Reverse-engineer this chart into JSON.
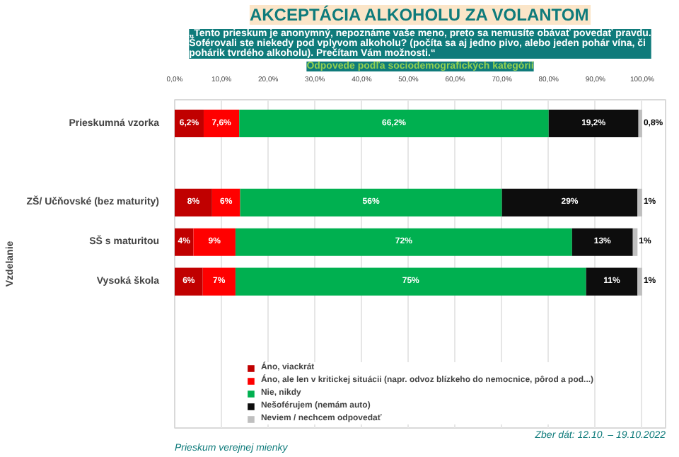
{
  "chart_data": {
    "type": "bar",
    "orientation": "horizontal",
    "stacked": true,
    "title": "AKCEPTÁCIA ALKOHOLU ZA VOLANTOM",
    "subtitle": "„Tento prieskum je anonymný, nepoznáme vaše meno, preto sa nemusíte obávať povedať pravdu. Šoférovali ste niekedy pod vplyvom alkoholu? (počíta sa aj jedno pivo, alebo jeden pohár vína, či pohárik tvrdého alkoholu). Prečítam Vám možnosti.“",
    "annotations": [
      "Odpovede podľa sociodemografických kategórií",
      "Prieskum verejnej mienky",
      "Zber dát: 12.10. – 19.10.2022"
    ],
    "ylabel": "Vzdelanie",
    "categories": [
      "Prieskumná vzorka",
      null,
      "ZŠ/ Učňovské (bez maturity)",
      "SŠ s maturitou",
      "Vysoká škola"
    ],
    "series": [
      {
        "name": "Áno, viackrát",
        "color": "#c00000",
        "values": [
          6.2,
          null,
          8,
          4,
          6
        ],
        "value_labels": [
          "6,2%",
          null,
          "8%",
          "4%",
          "6%"
        ]
      },
      {
        "name": "Áno, ale len v kritickej situácii (napr. odvoz blízkeho do nemocnice, pôrod a pod...)",
        "color": "#ff0000",
        "values": [
          7.6,
          null,
          6,
          9,
          7
        ],
        "value_labels": [
          "7,6%",
          null,
          "6%",
          "9%",
          "7%"
        ]
      },
      {
        "name": "Nie, nikdy",
        "color": "#00b050",
        "values": [
          66.2,
          null,
          56,
          72,
          75
        ],
        "value_labels": [
          "66,2%",
          null,
          "56%",
          "72%",
          "75%"
        ]
      },
      {
        "name": "Nešoférujem (nemám auto)",
        "color": "#0d0d0d",
        "values": [
          19.2,
          null,
          29,
          13,
          11
        ],
        "value_labels": [
          "19,2%",
          null,
          "29%",
          "13%",
          "11%"
        ]
      },
      {
        "name": "Neviem / nechcem odpovedať",
        "color": "#bfbfbf",
        "values": [
          0.8,
          null,
          1,
          1,
          1
        ],
        "value_labels": [
          "0,8%",
          null,
          "1%",
          "1%",
          "1%"
        ]
      }
    ],
    "xlim": [
      0,
      105
    ],
    "xticks": [
      {
        "value": 0,
        "label": "0,0%"
      },
      {
        "value": 10,
        "label": "10,0%"
      },
      {
        "value": 20,
        "label": "20,0%"
      },
      {
        "value": 30,
        "label": "30,0%"
      },
      {
        "value": 40,
        "label": "40,0%"
      },
      {
        "value": 50,
        "label": "50,0%"
      },
      {
        "value": 60,
        "label": "60,0%"
      },
      {
        "value": 70,
        "label": "70,0%"
      },
      {
        "value": 80,
        "label": "80,0%"
      },
      {
        "value": 90,
        "label": "90,0%"
      },
      {
        "value": 100,
        "label": "100,0%"
      }
    ],
    "grid": "x",
    "legend": "bottom"
  }
}
